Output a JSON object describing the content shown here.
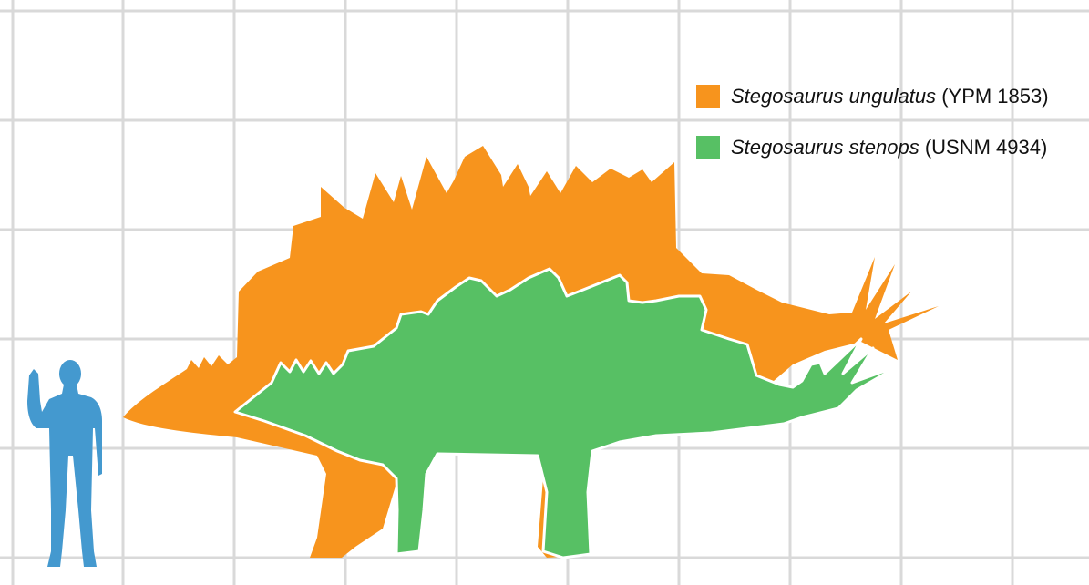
{
  "colors": {
    "background": "#ffffff",
    "grid": "#d9d9d9",
    "human": "#4499cf",
    "ungulatus": "#f7941d",
    "stenops": "#57c064",
    "outline": "#ffffff"
  },
  "grid": {
    "visible": true
  },
  "silhouettes": {
    "human": {
      "name": "human-silhouette"
    },
    "ungulatus": {
      "name": "stegosaurus-ungulatus-silhouette"
    },
    "stenops": {
      "name": "stegosaurus-stenops-silhouette"
    }
  },
  "legend": {
    "placement": "top-right",
    "items": [
      {
        "species": "Stegosaurus ungulatus",
        "specimen": "(YPM 1853)",
        "color": "#f7941d"
      },
      {
        "species": "Stegosaurus stenops",
        "specimen": "(USNM 4934)",
        "color": "#57c064"
      }
    ]
  }
}
